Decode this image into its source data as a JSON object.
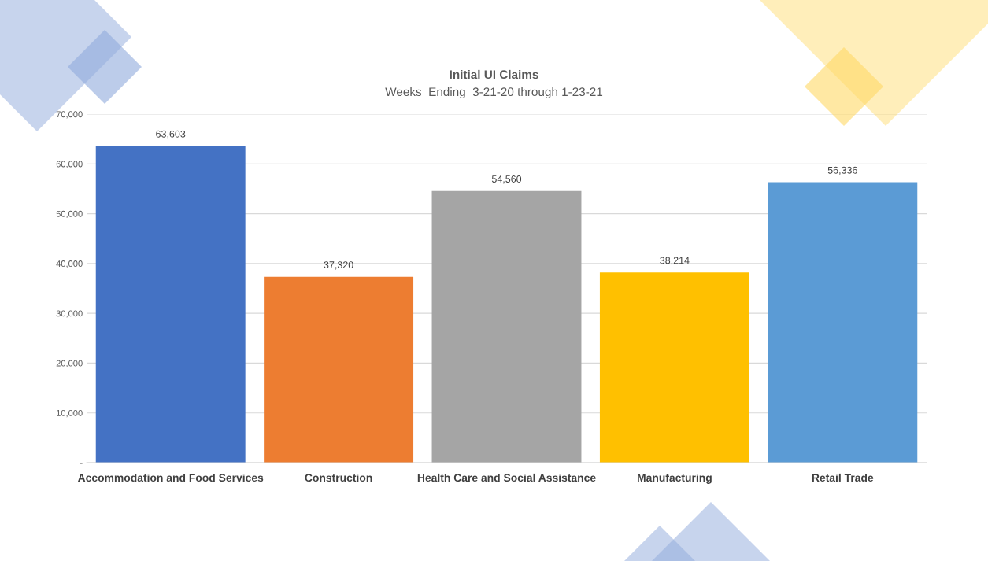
{
  "chart_data": {
    "type": "bar",
    "title": "Initial UI Claims",
    "subtitle": "Weeks  Ending  3-21-20 through 1-23-21",
    "categories": [
      "Accommodation and Food Services",
      "Construction",
      "Health Care and Social Assistance",
      "Manufacturing",
      "Retail Trade"
    ],
    "values": [
      63603,
      37320,
      54560,
      38214,
      56336
    ],
    "value_labels": [
      "63,603",
      "37,320",
      "54,560",
      "38,214",
      "56,336"
    ],
    "colors": [
      "#4472c4",
      "#ed7d31",
      "#a5a5a5",
      "#ffc000",
      "#5b9bd5"
    ],
    "ylim": [
      0,
      70000
    ],
    "yticks": [
      {
        "value": 0,
        "label": "-"
      },
      {
        "value": 10000,
        "label": "10,000"
      },
      {
        "value": 20000,
        "label": "20,000"
      },
      {
        "value": 30000,
        "label": "30,000"
      },
      {
        "value": 40000,
        "label": "40,000"
      },
      {
        "value": 50000,
        "label": "50,000"
      },
      {
        "value": 60000,
        "label": "60,000"
      },
      {
        "value": 70000,
        "label": "70,000"
      }
    ],
    "grid": "y"
  }
}
